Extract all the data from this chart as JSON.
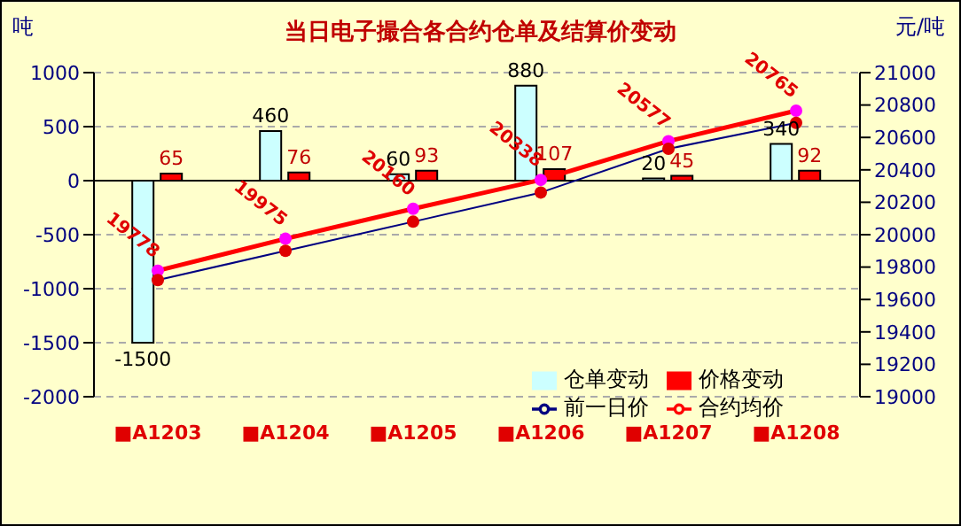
{
  "chart_data": {
    "type": "bar",
    "title": "当日电子撮合各合约仓单及结算价变动",
    "ylabel": "吨",
    "y2label": "元/吨",
    "categories": [
      "■A1203",
      "■A1204",
      "■A1205",
      "■A1206",
      "■A1207",
      "■A1208"
    ],
    "series": [
      {
        "name": "仓单变动",
        "color": "#ccffff",
        "values": [
          -1500,
          460,
          60,
          880,
          20,
          340
        ],
        "value_labels": [
          "-1500",
          "460",
          "60",
          "880",
          "20",
          "340"
        ]
      },
      {
        "name": "价格变动",
        "color": "#ff0000",
        "values": [
          65,
          76,
          93,
          107,
          45,
          92
        ],
        "value_labels": [
          "65",
          "76",
          "93",
          "107",
          "45",
          "92"
        ]
      },
      {
        "name": "合约均价",
        "type": "line",
        "axis": "y2",
        "color": "#ff0000",
        "values": [
          19778,
          19975,
          20160,
          20338,
          20577,
          20765
        ],
        "value_labels": [
          "19778",
          "19975",
          "20160",
          "20338",
          "20577",
          "20765"
        ]
      },
      {
        "name": "前一日价",
        "type": "line",
        "axis": "y2",
        "color": "#000080",
        "values": [
          19720,
          19900,
          20080,
          20260,
          20530,
          20690
        ]
      }
    ],
    "ylim": [
      -2000,
      1000
    ],
    "yticks": [
      -2000,
      -1500,
      -1000,
      -500,
      0,
      500,
      1000
    ],
    "y2lim": [
      19000,
      21000
    ],
    "y2ticks": [
      19000,
      19200,
      19400,
      19600,
      19800,
      20000,
      20200,
      20400,
      20600,
      20800,
      21000
    ],
    "grid": "y",
    "legend": "bottom right",
    "marker": "circle"
  }
}
